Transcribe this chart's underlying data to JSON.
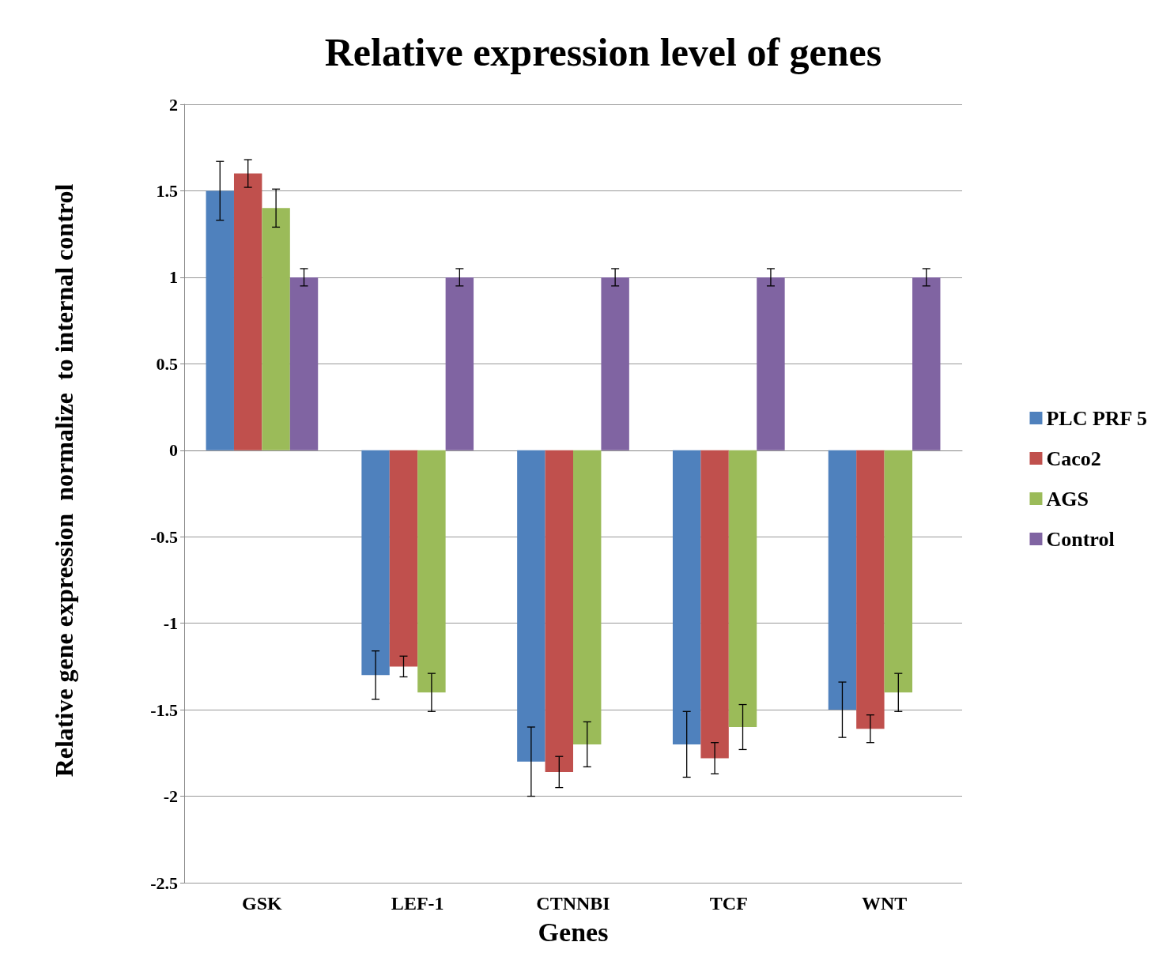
{
  "chart_data": {
    "type": "bar",
    "title": "Relative expression level of genes",
    "xlabel": "Genes",
    "ylabel": "Relative gene expression  normalize  to internal control",
    "categories": [
      "GSK",
      "LEF-1",
      "CTNNBI",
      "TCF",
      "WNT"
    ],
    "series": [
      {
        "name": "PLC PRF 5",
        "color": "#4f81bd",
        "values": [
          1.5,
          -1.3,
          -1.8,
          -1.7,
          -1.5
        ],
        "errors": [
          0.17,
          0.14,
          0.2,
          0.19,
          0.16
        ]
      },
      {
        "name": "Caco2",
        "color": "#c0504d",
        "values": [
          1.6,
          -1.25,
          -1.86,
          -1.78,
          -1.61
        ],
        "errors": [
          0.08,
          0.06,
          0.09,
          0.09,
          0.08
        ]
      },
      {
        "name": "AGS",
        "color": "#9bbb59",
        "values": [
          1.4,
          -1.4,
          -1.7,
          -1.6,
          -1.4
        ],
        "errors": [
          0.11,
          0.11,
          0.13,
          0.13,
          0.11
        ]
      },
      {
        "name": "Control",
        "color": "#8064a2",
        "values": [
          1,
          1,
          1,
          1,
          1
        ],
        "errors": [
          0.05,
          0.05,
          0.05,
          0.05,
          0.05
        ]
      }
    ],
    "ylim": [
      -2.5,
      2
    ],
    "yticks": [
      -2.5,
      -2,
      -1.5,
      -1,
      -0.5,
      0,
      0.5,
      1,
      1.5,
      2
    ],
    "grid": "y",
    "legend": "right"
  }
}
